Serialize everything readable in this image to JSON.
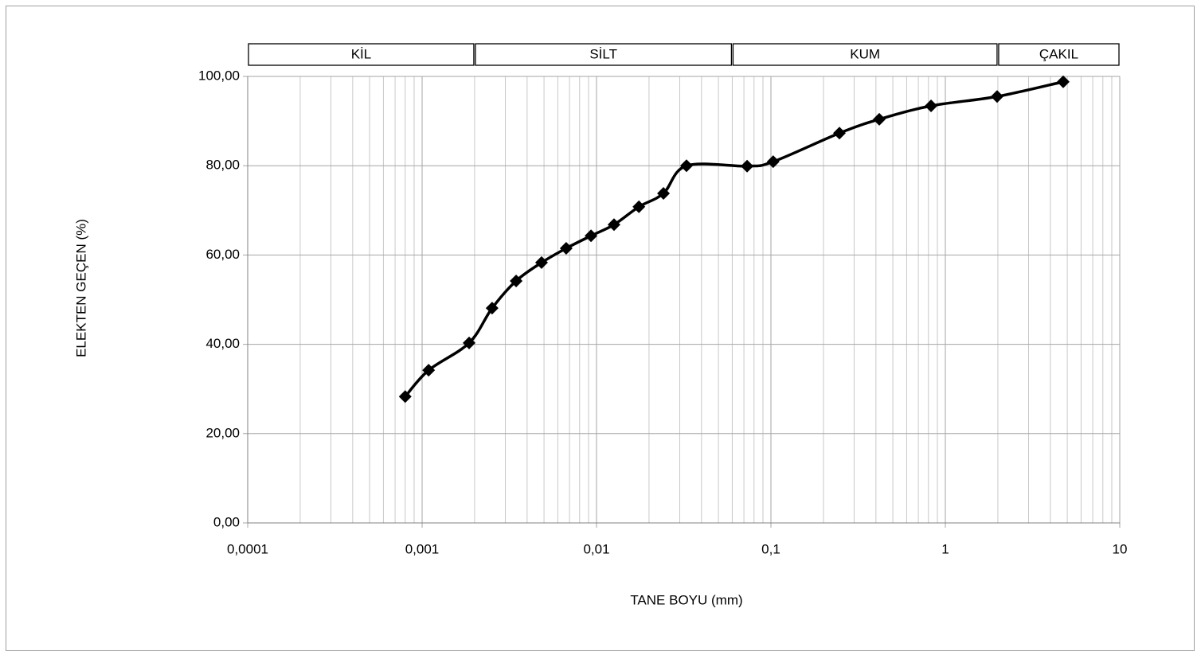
{
  "chart_data": {
    "type": "line",
    "xlabel": "TANE BOYU (mm)",
    "ylabel": "ELEKTEN GEÇEN (%)",
    "xscale": "log",
    "xlim": [
      0.0001,
      10
    ],
    "ylim": [
      0,
      100
    ],
    "xticks": [
      {
        "value": 0.0001,
        "label": "0,0001"
      },
      {
        "value": 0.001,
        "label": "0,001"
      },
      {
        "value": 0.01,
        "label": "0,01"
      },
      {
        "value": 0.1,
        "label": "0,1"
      },
      1,
      10
    ],
    "yticks": [
      {
        "value": 0,
        "label": "0,00"
      },
      {
        "value": 20,
        "label": "20,00"
      },
      {
        "value": 40,
        "label": "40,00"
      },
      {
        "value": 60,
        "label": "60,00"
      },
      {
        "value": 80,
        "label": "80,00"
      },
      {
        "value": 100,
        "label": "100,00"
      }
    ],
    "grid": true,
    "minor_grid": true,
    "bands": [
      {
        "label": "KİL",
        "from": 0.0001,
        "to": 0.002
      },
      {
        "label": "SİLT",
        "from": 0.002,
        "to": 0.06
      },
      {
        "label": "KUM",
        "from": 0.06,
        "to": 2
      },
      {
        "label": "ÇAKIL",
        "from": 2,
        "to": 10
      }
    ],
    "series": [
      {
        "color": "#000000",
        "x": [
          0.0008,
          0.00109,
          0.00186,
          0.00252,
          0.00346,
          0.00484,
          0.0067,
          0.0093,
          0.0126,
          0.0175,
          0.0242,
          0.0328,
          0.073,
          0.103,
          0.247,
          0.418,
          0.828,
          1.98,
          4.74
        ],
        "values": [
          28.3,
          34.2,
          40.3,
          48.1,
          54.2,
          58.3,
          61.5,
          64.3,
          66.8,
          70.8,
          73.8,
          80.0,
          79.9,
          80.9,
          87.3,
          90.4,
          93.4,
          95.5,
          98.8
        ]
      }
    ]
  }
}
